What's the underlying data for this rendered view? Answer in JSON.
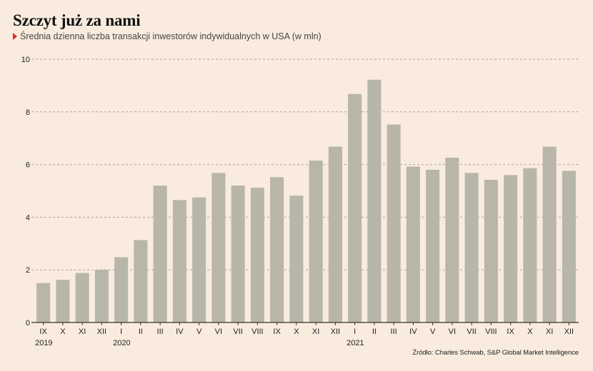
{
  "header": {
    "title": "Szczyt już za nami",
    "subtitle": "Średnia dzienna liczba transakcji inwestorów indywidualnych w USA (w mln)"
  },
  "footer": {
    "source": "Źródło: Charles Schwab, S&P Global Market Intelligence"
  },
  "colors": {
    "background": "#f9ecdf",
    "bar": "#b8b6a8",
    "grid": "#aaa39a",
    "marker": "#d92b2b"
  },
  "chart_data": {
    "type": "bar",
    "title": "Szczyt już za nami",
    "subtitle": "Średnia dzienna liczba transakcji inwestorów indywidualnych w USA (w mln)",
    "xlabel": "",
    "ylabel": "",
    "categories": [
      "IX",
      "X",
      "XI",
      "XII",
      "I",
      "II",
      "III",
      "IV",
      "V",
      "VI",
      "VII",
      "VIII",
      "IX",
      "X",
      "XI",
      "XII",
      "I",
      "II",
      "III",
      "IV",
      "V",
      "VI",
      "VII",
      "VIII",
      "IX",
      "X",
      "XI",
      "XII"
    ],
    "year_labels": [
      {
        "index": 0,
        "label": "2019"
      },
      {
        "index": 4,
        "label": "2020"
      },
      {
        "index": 16,
        "label": "2021"
      }
    ],
    "values": [
      1.5,
      1.62,
      1.88,
      2.0,
      2.48,
      3.13,
      5.2,
      4.65,
      4.75,
      5.68,
      5.2,
      5.12,
      5.52,
      4.82,
      6.15,
      6.68,
      8.68,
      9.22,
      7.52,
      5.92,
      5.8,
      6.26,
      5.68,
      5.42,
      5.6,
      5.86,
      6.68,
      5.76
    ],
    "ylim": [
      0,
      10
    ],
    "yticks": [
      0,
      2,
      4,
      6,
      8,
      10
    ],
    "grid": true,
    "legend": "none"
  }
}
